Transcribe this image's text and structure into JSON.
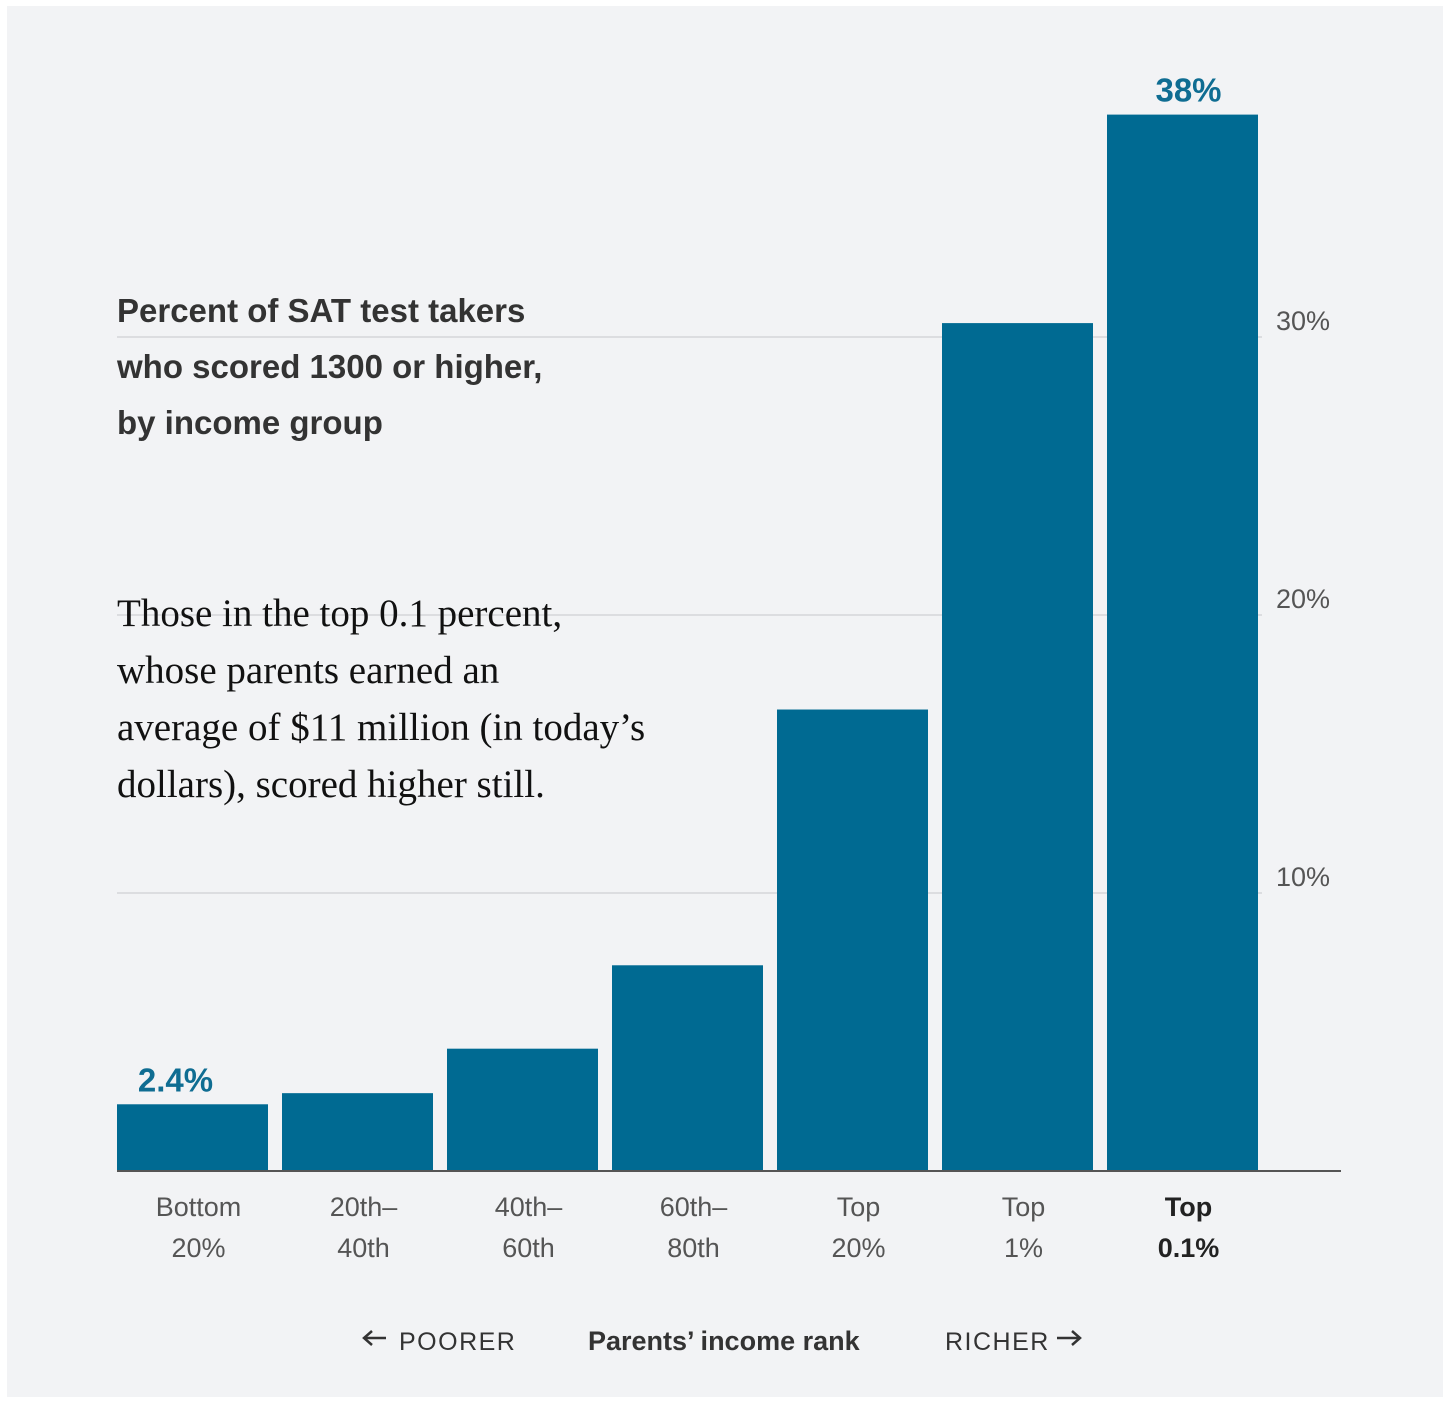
{
  "chart_data": {
    "type": "bar",
    "title_lines": [
      "Percent of SAT test takers",
      "who scored 1300 or higher,",
      "by income group"
    ],
    "annotation_lines": [
      "Those in the top 0.1 percent,",
      "whose parents earned an",
      "average of $11 million (in today’s",
      "dollars), scored higher still."
    ],
    "categories": [
      [
        "Bottom",
        "20%"
      ],
      [
        "20th–",
        "40th"
      ],
      [
        "40th–",
        "60th"
      ],
      [
        "60th–",
        "80th"
      ],
      [
        "Top",
        "20%"
      ],
      [
        "Top",
        "1%"
      ],
      [
        "Top",
        "0.1%"
      ]
    ],
    "highlight_category_index": 6,
    "values": [
      2.4,
      2.8,
      4.4,
      7.4,
      16.6,
      30.5,
      38
    ],
    "data_labels": [
      {
        "index": 0,
        "text": "2.4%"
      },
      {
        "index": 6,
        "text": "38%"
      }
    ],
    "y_ticks": [
      {
        "value": 10,
        "label": "10%"
      },
      {
        "value": 20,
        "label": "20%"
      },
      {
        "value": 30,
        "label": "30%"
      }
    ],
    "ylim": [
      0,
      38
    ],
    "y_axis_side": "right",
    "grid": true,
    "xlabel": "Parents’ income rank",
    "x_direction_labels": {
      "left": "POORER",
      "right": "RICHER"
    },
    "colors": {
      "bar": "#006a92",
      "label": "#0f6d92",
      "grid": "#dcdde0",
      "axis": "#555555",
      "tick_text": "#555555",
      "background": "#f2f3f5"
    }
  }
}
